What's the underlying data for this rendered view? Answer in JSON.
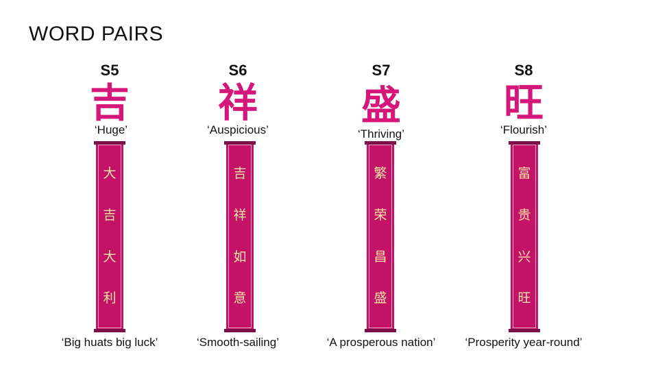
{
  "title": "WORD PAIRS",
  "pairs": [
    {
      "id": "S5",
      "character": "吉",
      "meaning": "‘Huge’",
      "banner": [
        "大",
        "吉",
        "大",
        "利"
      ],
      "caption": "‘Big huats big luck’"
    },
    {
      "id": "S6",
      "character": "祥",
      "meaning": "‘Auspicious’",
      "banner": [
        "吉",
        "祥",
        "如",
        "意"
      ],
      "caption": "‘Smooth-sailing’"
    },
    {
      "id": "S7",
      "character": "盛",
      "meaning": "‘Thriving’",
      "banner": [
        "繁",
        "荣",
        "昌",
        "盛"
      ],
      "caption": "‘A prosperous nation’"
    },
    {
      "id": "S8",
      "character": "旺",
      "meaning": "‘Flourish’",
      "banner": [
        "富",
        "贵",
        "兴",
        "旺"
      ],
      "caption": "‘Prosperity year-round’"
    }
  ],
  "colors": {
    "accent": "#d6177a",
    "banner": "#c41267",
    "banner_text": "#fde3a8"
  }
}
